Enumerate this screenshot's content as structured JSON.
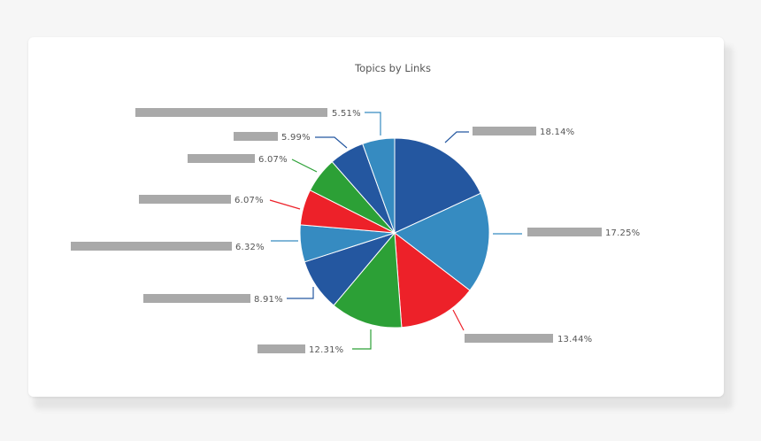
{
  "chart_data": {
    "type": "pie",
    "title": "Topics by Links",
    "slices": [
      {
        "label": "18.14%",
        "value": 18.14,
        "color": "#2457a0"
      },
      {
        "label": "17.25%",
        "value": 17.25,
        "color": "#368bc1"
      },
      {
        "label": "13.44%",
        "value": 13.44,
        "color": "#ed2129"
      },
      {
        "label": "12.31%",
        "value": 12.31,
        "color": "#2ca036"
      },
      {
        "label": "8.91%",
        "value": 8.91,
        "color": "#2457a0"
      },
      {
        "label": "6.32%",
        "value": 6.32,
        "color": "#368bc1"
      },
      {
        "label": "6.07%",
        "value": 6.07,
        "color": "#ed2129"
      },
      {
        "label": "6.07%",
        "value": 6.07,
        "color": "#2ca036"
      },
      {
        "label": "5.99%",
        "value": 5.99,
        "color": "#2457a0"
      },
      {
        "label": "5.51%",
        "value": 5.51,
        "color": "#368bc1"
      }
    ],
    "redacted_label_color": "#a9a9a9"
  }
}
